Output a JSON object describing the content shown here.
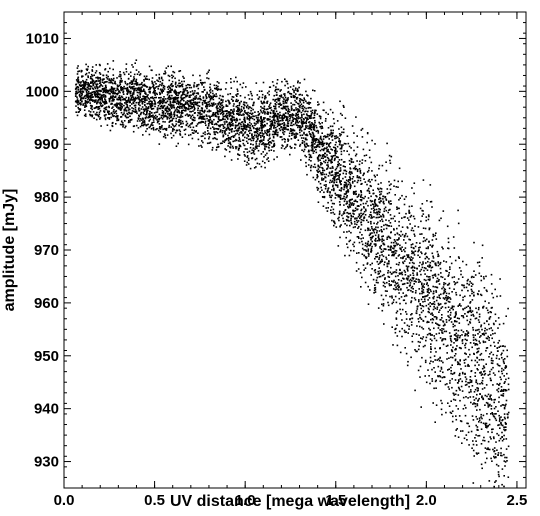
{
  "chart_data": {
    "type": "scatter",
    "title": "",
    "xlabel": "UV distance [mega wavelength]",
    "ylabel": "amplitude [mJy]",
    "xlim": [
      0.0,
      2.55
    ],
    "ylim": [
      925,
      1015
    ],
    "xticks": [
      0.0,
      0.5,
      1.0,
      1.5,
      2.0,
      2.5
    ],
    "xtick_labels": [
      "0.0",
      "0.5",
      "1.0",
      "1.5",
      "2.0",
      "2.5"
    ],
    "yticks": [
      930,
      940,
      950,
      960,
      970,
      980,
      990,
      1000,
      1010
    ],
    "ytick_labels": [
      "930",
      "940",
      "950",
      "960",
      "970",
      "980",
      "990",
      "1000",
      "1010"
    ],
    "grid": false,
    "legend": "none",
    "marker_color": "#000000",
    "series": [
      {
        "description_points": "binned envelope of the visibility scatter: x = UV distance, y_center = mean amplitude, y_spread = approx. half-range of scatter",
        "x": [
          0.06,
          0.1,
          0.2,
          0.3,
          0.4,
          0.5,
          0.6,
          0.7,
          0.8,
          0.9,
          1.0,
          1.1,
          1.2,
          1.3,
          1.4,
          1.5,
          1.6,
          1.7,
          1.8,
          1.9,
          2.0,
          2.1,
          2.2,
          2.3,
          2.4,
          2.45
        ],
        "y_center": [
          1000,
          1000,
          999.5,
          999,
          998.5,
          998,
          997.5,
          997,
          996,
          995,
          994,
          993,
          996,
          995,
          990,
          985,
          980,
          975,
          970,
          966,
          962,
          957,
          952,
          948,
          942,
          940
        ],
        "y_spread": [
          6,
          6,
          7,
          8,
          8,
          9,
          9,
          9,
          9,
          9,
          10,
          10,
          9,
          9,
          12,
          15,
          18,
          20,
          22,
          24,
          26,
          27,
          28,
          29,
          30,
          30
        ]
      }
    ]
  }
}
